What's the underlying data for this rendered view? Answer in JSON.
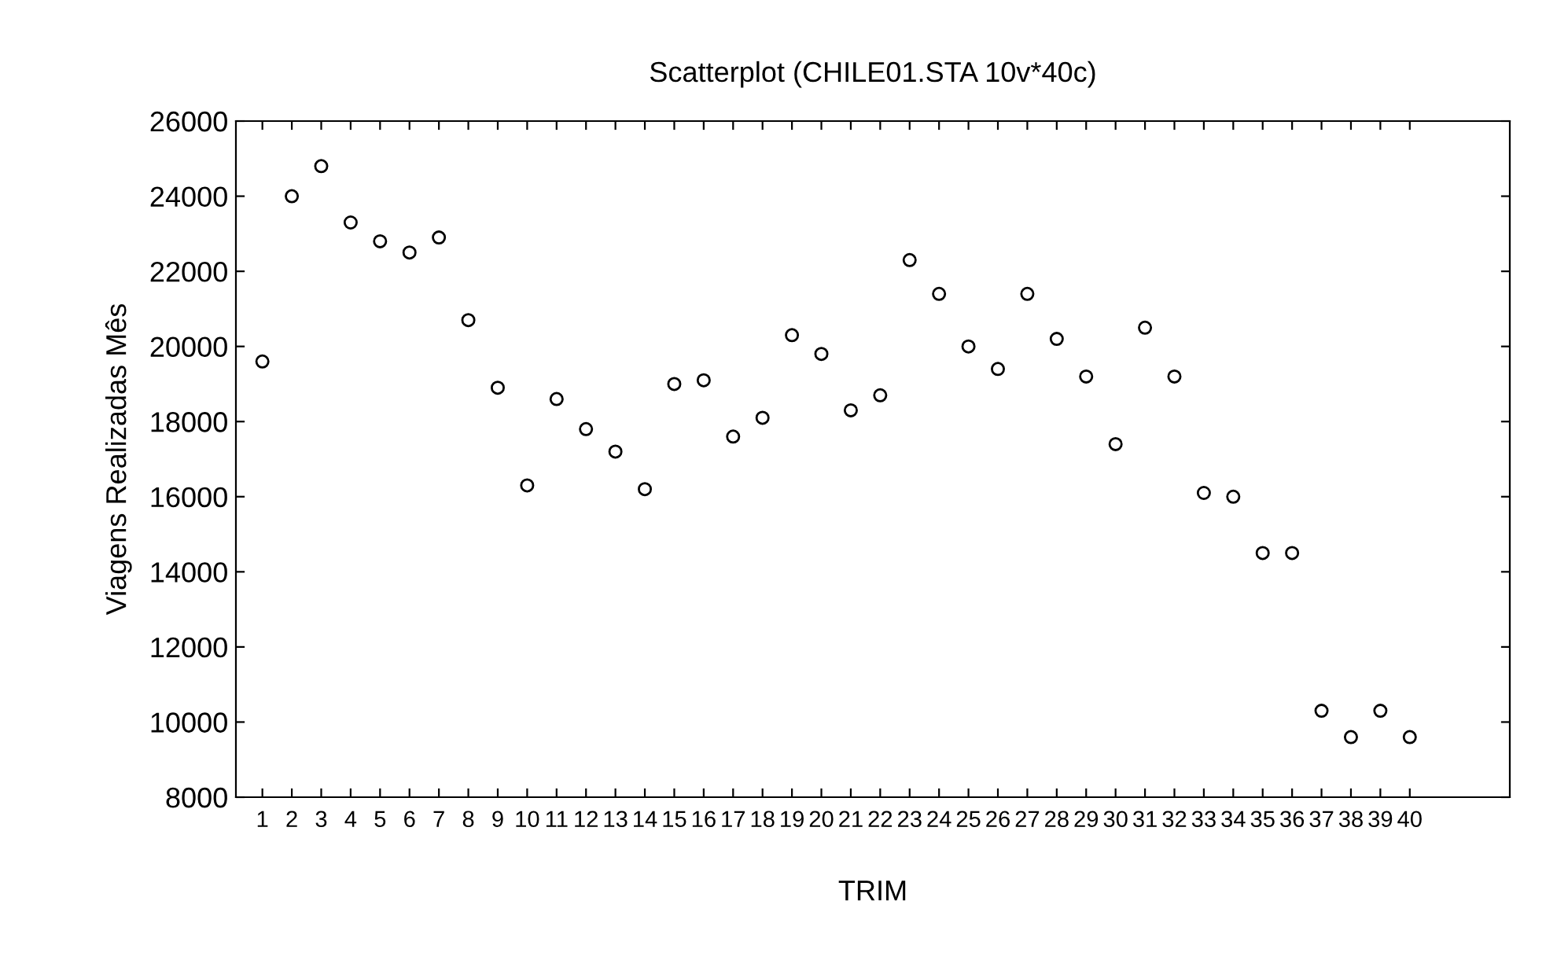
{
  "chart_data": {
    "type": "scatter",
    "title": "Scatterplot (CHILE01.STA 10v*40c)",
    "xlabel": "TRIM",
    "ylabel": "Viagens Realizadas Mês",
    "x": [
      1,
      2,
      3,
      4,
      5,
      6,
      7,
      8,
      9,
      10,
      11,
      12,
      13,
      14,
      15,
      16,
      17,
      18,
      19,
      20,
      21,
      22,
      23,
      24,
      25,
      26,
      27,
      28,
      29,
      30,
      31,
      32,
      33,
      34,
      35,
      36,
      37,
      38,
      39,
      40
    ],
    "values": [
      19600,
      24000,
      24800,
      23300,
      22800,
      22500,
      22900,
      20700,
      18900,
      16300,
      18600,
      17800,
      17200,
      16200,
      19000,
      19100,
      17600,
      18100,
      20300,
      19800,
      18300,
      18700,
      22300,
      21400,
      20000,
      19400,
      21400,
      20200,
      19200,
      17400,
      20500,
      19200,
      16100,
      16000,
      14500,
      14500,
      10300,
      9600,
      10300,
      9600
    ],
    "color": "#000000",
    "marker": "circle",
    "xlim": [
      0.1,
      43.4
    ],
    "xticks": [
      1,
      2,
      3,
      4,
      5,
      6,
      7,
      8,
      9,
      10,
      11,
      12,
      13,
      14,
      15,
      16,
      17,
      18,
      19,
      20,
      21,
      22,
      23,
      24,
      25,
      26,
      27,
      28,
      29,
      30,
      31,
      32,
      33,
      34,
      35,
      36,
      37,
      38,
      39,
      40
    ],
    "ylim": [
      8000,
      26000
    ],
    "yticks": [
      8000,
      10000,
      12000,
      14000,
      16000,
      18000,
      20000,
      22000,
      24000,
      26000
    ],
    "grid": false
  }
}
